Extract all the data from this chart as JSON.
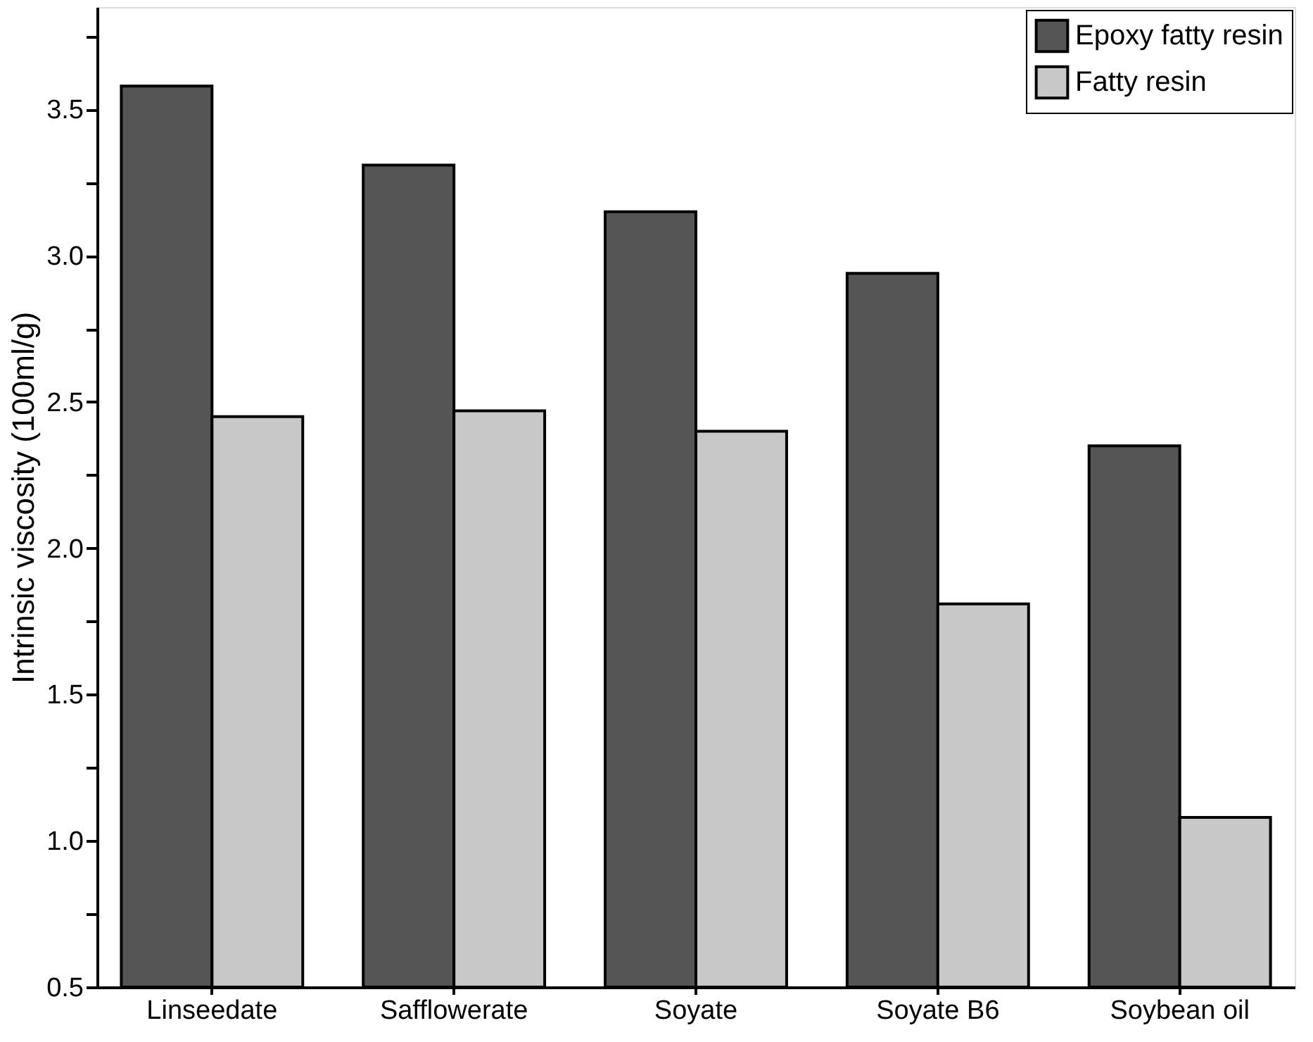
{
  "chart_data": {
    "type": "bar",
    "ylabel": "Intrinsic viscosity  (100ml/g)",
    "categories": [
      "Linseedate",
      "Safflowerate",
      "Soyate",
      "Soyate B6",
      "Soybean oil"
    ],
    "series": [
      {
        "name": "Epoxy fatty resin",
        "color": "#555555",
        "values": [
          3.58,
          3.31,
          3.15,
          2.94,
          2.35
        ]
      },
      {
        "name": "Fatty resin",
        "color": "#c8c8c8",
        "values": [
          2.45,
          2.47,
          2.4,
          1.81,
          1.08
        ]
      }
    ],
    "ylim": [
      0.5,
      3.85
    ],
    "yticks": [
      0.5,
      {
        "value": 0.75,
        "label": null
      },
      {
        "value": 1,
        "label": "1.0"
      },
      {
        "value": 1.25,
        "label": null
      },
      1.5,
      {
        "value": 1.75,
        "label": null
      },
      {
        "value": 2,
        "label": "2.0"
      },
      {
        "value": 2.25,
        "label": null
      },
      2.5,
      {
        "value": 2.75,
        "label": null
      },
      {
        "value": 3,
        "label": "3.0"
      },
      {
        "value": 3.25,
        "label": null
      },
      3.5,
      {
        "value": 3.75,
        "label": null
      }
    ],
    "grid": false,
    "legend": "top right"
  }
}
